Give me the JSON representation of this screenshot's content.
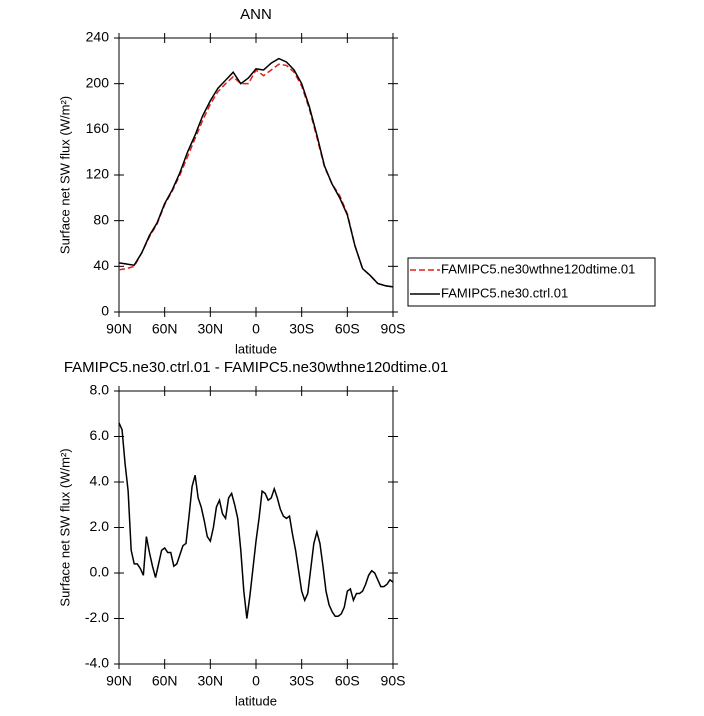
{
  "chart_data": [
    {
      "type": "line",
      "title": "ANN",
      "xlabel": "latitude",
      "ylabel": "Surface net SW flux (W/m²)",
      "x": [
        90,
        85,
        80,
        75,
        70,
        65,
        60,
        55,
        50,
        45,
        40,
        35,
        30,
        25,
        20,
        15,
        10,
        5,
        0,
        -5,
        -10,
        -15,
        -20,
        -25,
        -30,
        -35,
        -40,
        -45,
        -50,
        -55,
        -60,
        -65,
        -70,
        -75,
        -80,
        -85,
        -90
      ],
      "series": [
        {
          "name": "FAMIPC5.ne30wthne120dtime.01",
          "color": "#e0201a",
          "line_style": "dashed",
          "values": [
            37,
            38,
            40,
            52,
            66,
            77,
            94,
            106,
            120,
            136,
            152,
            168,
            182,
            193,
            200,
            206,
            200,
            200,
            212,
            207,
            212,
            217,
            216,
            210,
            198,
            178,
            153,
            127,
            112,
            102,
            86,
            58,
            38,
            32,
            25,
            23,
            22
          ]
        },
        {
          "name": "FAMIPC5.ne30.ctrl.01",
          "color": "#000000",
          "line_style": "solid",
          "values": [
            43,
            42,
            41,
            52,
            67,
            78,
            95,
            107,
            122,
            140,
            155,
            172,
            185,
            196,
            203,
            210,
            200,
            205,
            213,
            212,
            218,
            222,
            219,
            212,
            200,
            180,
            155,
            128,
            112,
            100,
            85,
            58,
            38,
            32,
            25,
            23,
            22
          ]
        }
      ],
      "xlim": [
        90,
        -90
      ],
      "xticks": [
        {
          "value": 90,
          "label": "90N"
        },
        {
          "value": 60,
          "label": "60N"
        },
        {
          "value": 30,
          "label": "30N"
        },
        0,
        {
          "value": -30,
          "label": "30S"
        },
        {
          "value": -60,
          "label": "60S"
        },
        {
          "value": -90,
          "label": "90S"
        }
      ],
      "ylim": [
        0,
        240
      ],
      "yticks": [
        0,
        40,
        80,
        120,
        160,
        200,
        240
      ],
      "legend": "right-outside"
    },
    {
      "type": "line",
      "title": "FAMIPC5.ne30.ctrl.01 - FAMIPC5.ne30wthne120dtime.01",
      "xlabel": "latitude",
      "ylabel": "Surface net SW flux (W/m²)",
      "x": [
        90,
        88,
        86,
        84,
        82,
        80,
        78,
        76,
        74,
        72,
        70,
        68,
        66,
        64,
        62,
        60,
        58,
        56,
        54,
        52,
        50,
        48,
        46,
        44,
        42,
        40,
        38,
        36,
        34,
        32,
        30,
        28,
        26,
        24,
        22,
        20,
        18,
        16,
        14,
        12,
        10,
        8,
        6,
        4,
        2,
        0,
        -2,
        -4,
        -6,
        -8,
        -10,
        -12,
        -14,
        -16,
        -18,
        -20,
        -22,
        -24,
        -26,
        -28,
        -30,
        -32,
        -34,
        -36,
        -38,
        -40,
        -42,
        -44,
        -46,
        -48,
        -50,
        -52,
        -54,
        -56,
        -58,
        -60,
        -62,
        -64,
        -66,
        -68,
        -70,
        -72,
        -74,
        -76,
        -78,
        -80,
        -82,
        -84,
        -86,
        -88,
        -90
      ],
      "series": [
        {
          "color": "#000000",
          "line_style": "solid",
          "values": [
            6.6,
            6.3,
            4.8,
            3.6,
            1.0,
            0.4,
            0.4,
            0.2,
            -0.1,
            1.6,
            0.9,
            0.3,
            -0.2,
            0.4,
            1.0,
            1.1,
            0.9,
            0.9,
            0.3,
            0.4,
            0.8,
            1.2,
            1.3,
            2.5,
            3.8,
            4.3,
            3.3,
            2.9,
            2.3,
            1.6,
            1.4,
            2.0,
            2.9,
            3.2,
            2.6,
            2.4,
            3.3,
            3.5,
            3.0,
            2.4,
            1.0,
            -0.8,
            -2.0,
            -1.0,
            0.2,
            1.4,
            2.4,
            3.6,
            3.5,
            3.2,
            3.3,
            3.7,
            3.3,
            2.8,
            2.5,
            2.4,
            2.5,
            1.7,
            1.0,
            0.1,
            -0.8,
            -1.2,
            -0.9,
            0.2,
            1.3,
            1.8,
            1.3,
            0.3,
            -0.8,
            -1.4,
            -1.7,
            -1.9,
            -1.9,
            -1.8,
            -1.5,
            -0.8,
            -0.7,
            -1.2,
            -0.9,
            -0.9,
            -0.8,
            -0.5,
            -0.1,
            0.1,
            0.0,
            -0.3,
            -0.6,
            -0.6,
            -0.5,
            -0.3,
            -0.4
          ]
        }
      ],
      "xlim": [
        90,
        -90
      ],
      "xticks": [
        {
          "value": 90,
          "label": "90N"
        },
        {
          "value": 60,
          "label": "60N"
        },
        {
          "value": 30,
          "label": "30N"
        },
        0,
        {
          "value": -30,
          "label": "30S"
        },
        {
          "value": -60,
          "label": "60S"
        },
        {
          "value": -90,
          "label": "90S"
        }
      ],
      "ylim": [
        -4,
        8
      ],
      "yticks": [
        {
          "value": -4,
          "label": "-4.0"
        },
        {
          "value": -2,
          "label": "-2.0"
        },
        {
          "value": 0,
          "label": "0.0"
        },
        {
          "value": 2,
          "label": "2.0"
        },
        {
          "value": 4,
          "label": "4.0"
        },
        {
          "value": 6,
          "label": "6.0"
        },
        {
          "value": 8,
          "label": "8.0"
        }
      ]
    }
  ]
}
